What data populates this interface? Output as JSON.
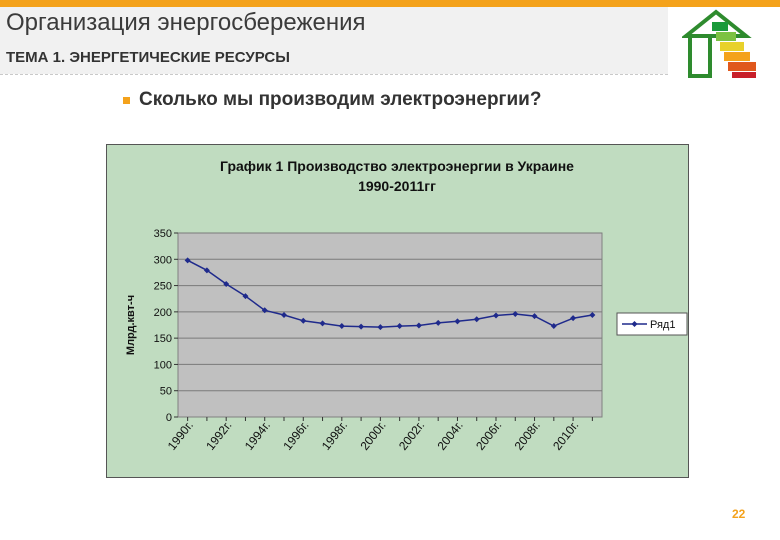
{
  "header": {
    "title": "Организация энергосбережения",
    "subtitle": "ТЕМА 1.  ЭНЕРГЕТИЧЕСКИЕ РЕСУРСЫ"
  },
  "content": {
    "question": "Сколько мы производим электроэнергии?"
  },
  "footer": {
    "page_number": "22"
  },
  "colors": {
    "accent": "#f4a21b",
    "chart_bg": "#c0dcc0",
    "plot_bg": "#c0c0c0",
    "series": "#1f2a8c"
  },
  "logo": {
    "icon": "energy-house-icon"
  },
  "chart_data": {
    "type": "line",
    "title_line1": "График 1 Производство электроэнергии в Украине",
    "title_line2": "1990-2011гг",
    "ylabel": "Млрд.квт-ч",
    "xlabel": "",
    "ylim": [
      0,
      350
    ],
    "yticks": [
      "0",
      "50",
      "100",
      "150",
      "200",
      "250",
      "300",
      "350"
    ],
    "x": [
      "1990г.",
      "1991г.",
      "1992г.",
      "1993г.",
      "1994г.",
      "1995г.",
      "1996г.",
      "1997г.",
      "1998г.",
      "1999г.",
      "2000г.",
      "2001г.",
      "2002г.",
      "2003г.",
      "2004г.",
      "2005г.",
      "2006г.",
      "2007г.",
      "2008г.",
      "2009г.",
      "2010г.",
      "2011г."
    ],
    "xtick_labels": [
      "1990г.",
      "1992г.",
      "1994г.",
      "1996г.",
      "1998г.",
      "2000г.",
      "2002г.",
      "2004г.",
      "2006г.",
      "2008г.",
      "2010г."
    ],
    "series": [
      {
        "name": "Ряд1",
        "values": [
          298,
          279,
          253,
          230,
          203,
          194,
          183,
          178,
          173,
          172,
          171,
          173,
          174,
          179,
          182,
          186,
          193,
          196,
          192,
          173,
          188,
          194
        ]
      }
    ],
    "grid": true,
    "legend_position": "right"
  }
}
